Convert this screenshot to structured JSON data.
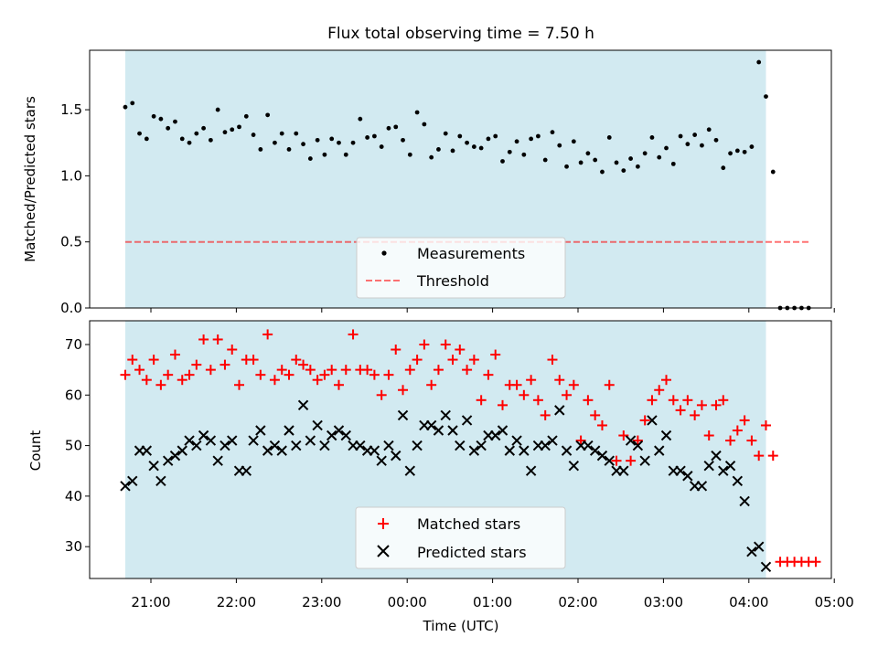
{
  "title": "Flux total observing time = 7.50 h",
  "colors": {
    "span_fill": "#add8e6",
    "threshold": "#ff0000",
    "measurement": "#000000",
    "matched": "#ff0000",
    "predicted": "#000000"
  },
  "chart_data": [
    {
      "type": "scatter",
      "ylabel": "Matched/Predicted stars",
      "ylim": [
        0.0,
        1.95
      ],
      "yticks": [
        "0.0",
        "0.5",
        "1.0",
        "1.5"
      ],
      "shaded_span": [
        "20:42",
        "04:12"
      ],
      "threshold": {
        "name": "Threshold",
        "value": 0.5,
        "x_range": [
          "20:42",
          "04:42"
        ],
        "style": "dashed"
      },
      "legend": {
        "placement": "lower center",
        "entries": [
          "Measurements",
          "Threshold"
        ]
      },
      "series": [
        {
          "name": "Measurements",
          "marker": "dot",
          "points": [
            [
              "20:42",
              1.52
            ],
            [
              "20:47",
              1.55
            ],
            [
              "20:52",
              1.32
            ],
            [
              "20:57",
              1.28
            ],
            [
              "21:02",
              1.45
            ],
            [
              "21:07",
              1.43
            ],
            [
              "21:12",
              1.36
            ],
            [
              "21:17",
              1.41
            ],
            [
              "21:22",
              1.28
            ],
            [
              "21:27",
              1.25
            ],
            [
              "21:32",
              1.32
            ],
            [
              "21:37",
              1.36
            ],
            [
              "21:42",
              1.27
            ],
            [
              "21:47",
              1.5
            ],
            [
              "21:52",
              1.33
            ],
            [
              "21:57",
              1.35
            ],
            [
              "22:02",
              1.37
            ],
            [
              "22:07",
              1.45
            ],
            [
              "22:12",
              1.31
            ],
            [
              "22:17",
              1.2
            ],
            [
              "22:22",
              1.46
            ],
            [
              "22:27",
              1.25
            ],
            [
              "22:32",
              1.32
            ],
            [
              "22:37",
              1.2
            ],
            [
              "22:42",
              1.32
            ],
            [
              "22:47",
              1.24
            ],
            [
              "22:52",
              1.13
            ],
            [
              "22:57",
              1.27
            ],
            [
              "23:02",
              1.16
            ],
            [
              "23:07",
              1.28
            ],
            [
              "23:12",
              1.25
            ],
            [
              "23:17",
              1.16
            ],
            [
              "23:22",
              1.25
            ],
            [
              "23:27",
              1.43
            ],
            [
              "23:32",
              1.29
            ],
            [
              "23:37",
              1.3
            ],
            [
              "23:42",
              1.22
            ],
            [
              "23:47",
              1.36
            ],
            [
              "23:52",
              1.37
            ],
            [
              "23:57",
              1.27
            ],
            [
              "00:02",
              1.16
            ],
            [
              "00:07",
              1.48
            ],
            [
              "00:12",
              1.39
            ],
            [
              "00:17",
              1.14
            ],
            [
              "00:22",
              1.2
            ],
            [
              "00:27",
              1.32
            ],
            [
              "00:32",
              1.19
            ],
            [
              "00:37",
              1.3
            ],
            [
              "00:42",
              1.25
            ],
            [
              "00:47",
              1.22
            ],
            [
              "00:52",
              1.21
            ],
            [
              "00:57",
              1.28
            ],
            [
              "01:02",
              1.3
            ],
            [
              "01:07",
              1.11
            ],
            [
              "01:12",
              1.18
            ],
            [
              "01:17",
              1.26
            ],
            [
              "01:22",
              1.16
            ],
            [
              "01:27",
              1.28
            ],
            [
              "01:32",
              1.3
            ],
            [
              "01:37",
              1.12
            ],
            [
              "01:42",
              1.33
            ],
            [
              "01:47",
              1.23
            ],
            [
              "01:52",
              1.07
            ],
            [
              "01:57",
              1.26
            ],
            [
              "02:02",
              1.1
            ],
            [
              "02:07",
              1.17
            ],
            [
              "02:12",
              1.12
            ],
            [
              "02:17",
              1.03
            ],
            [
              "02:22",
              1.29
            ],
            [
              "02:27",
              1.1
            ],
            [
              "02:32",
              1.04
            ],
            [
              "02:37",
              1.13
            ],
            [
              "02:42",
              1.07
            ],
            [
              "02:47",
              1.17
            ],
            [
              "02:52",
              1.29
            ],
            [
              "02:57",
              1.14
            ],
            [
              "03:02",
              1.21
            ],
            [
              "03:07",
              1.09
            ],
            [
              "03:12",
              1.3
            ],
            [
              "03:17",
              1.24
            ],
            [
              "03:22",
              1.31
            ],
            [
              "03:27",
              1.23
            ],
            [
              "03:32",
              1.35
            ],
            [
              "03:37",
              1.27
            ],
            [
              "03:42",
              1.06
            ],
            [
              "03:47",
              1.17
            ],
            [
              "03:52",
              1.19
            ],
            [
              "03:57",
              1.18
            ],
            [
              "04:02",
              1.22
            ],
            [
              "04:07",
              1.86
            ],
            [
              "04:12",
              1.6
            ],
            [
              "04:17",
              1.03
            ],
            [
              "04:22",
              0.0
            ],
            [
              "04:27",
              0.0
            ],
            [
              "04:32",
              0.0
            ],
            [
              "04:37",
              0.0
            ],
            [
              "04:42",
              0.0
            ]
          ]
        }
      ]
    },
    {
      "type": "scatter",
      "xlabel": "Time (UTC)",
      "ylabel": "Count",
      "ylim": [
        23.7,
        74.7
      ],
      "yticks": [
        "30",
        "40",
        "50",
        "60",
        "70"
      ],
      "xticks": [
        "21:00",
        "22:00",
        "23:00",
        "00:00",
        "01:00",
        "02:00",
        "03:00",
        "04:00",
        "05:00"
      ],
      "shaded_span": [
        "20:42",
        "04:12"
      ],
      "legend": {
        "placement": "lower center",
        "entries": [
          "Matched stars",
          "Predicted stars"
        ]
      },
      "series": [
        {
          "name": "Matched stars",
          "marker": "plus",
          "values": [
            64,
            67,
            65,
            63,
            67,
            62,
            64,
            68,
            63,
            64,
            66,
            71,
            65,
            71,
            66,
            69,
            62,
            67,
            67,
            64,
            72,
            63,
            65,
            64,
            67,
            66,
            65,
            63,
            64,
            65,
            62,
            65,
            72,
            65,
            65,
            64,
            60,
            64,
            69,
            61,
            65,
            67,
            70,
            62,
            65,
            70,
            67,
            69,
            65,
            67,
            59,
            64,
            68,
            58,
            62,
            62,
            60,
            63,
            59,
            56,
            67,
            63,
            60,
            62,
            51,
            59,
            56,
            54,
            62,
            47,
            52,
            47,
            51,
            55,
            59,
            61,
            63,
            59,
            57,
            59,
            56,
            58,
            52,
            58,
            59,
            51,
            53,
            55,
            51,
            48,
            54,
            48,
            27,
            27,
            27,
            27,
            27,
            27
          ]
        },
        {
          "name": "Predicted stars",
          "marker": "x",
          "values": [
            42,
            43,
            49,
            49,
            46,
            43,
            47,
            48,
            49,
            51,
            50,
            52,
            51,
            47,
            50,
            51,
            45,
            45,
            51,
            53,
            49,
            50,
            49,
            53,
            50,
            58,
            51,
            54,
            50,
            52,
            53,
            52,
            50,
            50,
            49,
            49,
            47,
            50,
            48,
            56,
            45,
            50,
            54,
            54,
            53,
            56,
            53,
            50,
            55,
            49,
            50,
            52,
            52,
            53,
            49,
            51,
            49,
            45,
            50,
            50,
            51,
            57,
            49,
            46,
            50,
            50,
            49,
            48,
            47,
            45,
            45,
            51,
            50,
            47,
            55,
            49,
            52,
            45,
            45,
            44,
            42,
            42,
            46,
            48,
            45,
            46,
            43,
            39,
            29,
            30,
            26
          ]
        }
      ],
      "predicted_start": "20:42",
      "sample_interval_min": 5
    }
  ]
}
